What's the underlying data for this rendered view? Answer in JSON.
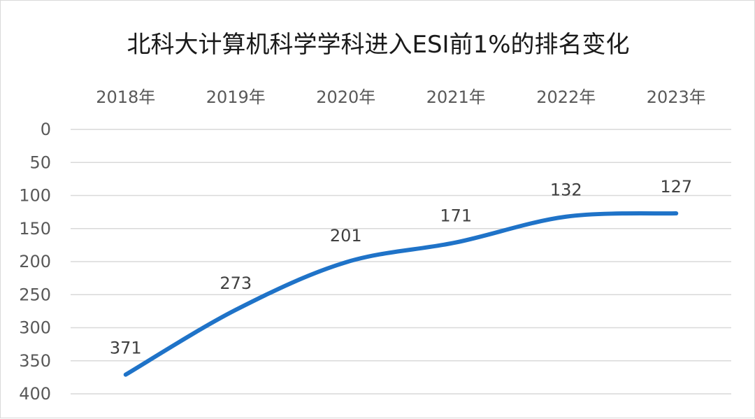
{
  "chart_data": {
    "type": "line",
    "title": "北科大计算机科学学科进入ESI前1%的排名变化",
    "categories": [
      "2018年",
      "2019年",
      "2020年",
      "2021年",
      "2022年",
      "2023年"
    ],
    "series": [
      {
        "values": [
          371,
          273,
          201,
          171,
          132,
          127
        ],
        "color": "#1f73c8"
      }
    ],
    "data_labels": [
      "371",
      "273",
      "201",
      "171",
      "132",
      "127"
    ],
    "y_ticks": [
      "0",
      "50",
      "100",
      "150",
      "200",
      "250",
      "300",
      "350",
      "400"
    ],
    "ylim": [
      0,
      400
    ],
    "y_axis_reversed": true,
    "x_axis_position": "top",
    "smooth": true,
    "grid": true,
    "legend": "none"
  }
}
